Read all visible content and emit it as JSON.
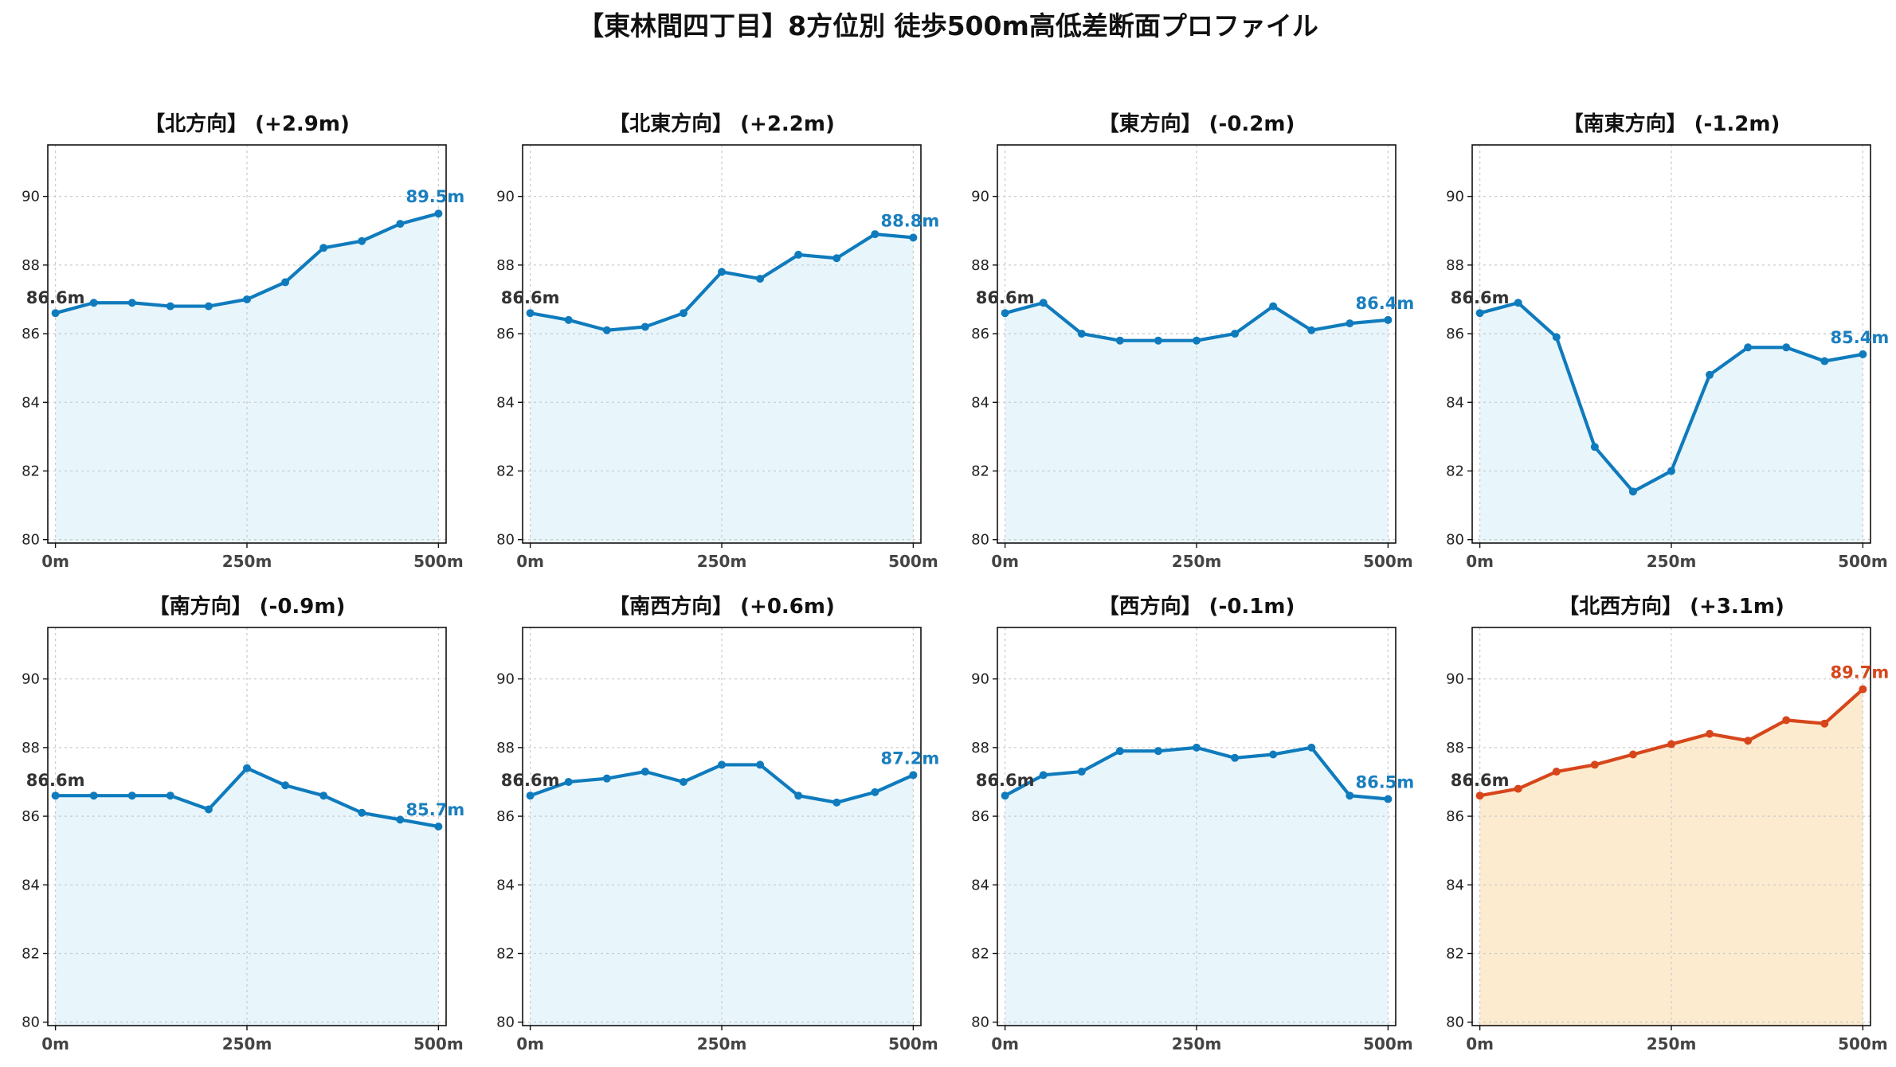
{
  "figure": {
    "title": "【東林間四丁目】8方位別 徒歩500m高低差断面プロファイル"
  },
  "colors": {
    "normal_line": "#0f7bbd",
    "normal_fill": "#e8f6fc",
    "normal_label": "#1a7fbf",
    "highlight_line": "#d7461b",
    "highlight_fill": "#fdebcf",
    "highlight_label": "#d7461b",
    "start_label": "#333333"
  },
  "chart_data": [
    {
      "type": "area",
      "title": "【北方向】 (+2.9m)",
      "highlight": false,
      "x": [
        0,
        50,
        100,
        150,
        200,
        250,
        300,
        350,
        400,
        450,
        500
      ],
      "y": [
        86.6,
        86.9,
        86.9,
        86.8,
        86.8,
        87.0,
        87.5,
        88.5,
        88.7,
        89.2,
        89.5
      ],
      "start_label": "86.6m",
      "end_label": "89.5m",
      "xticks": [
        "0m",
        "250m",
        "500m"
      ],
      "yticks": [
        "80",
        "82",
        "84",
        "86",
        "88",
        "90"
      ],
      "xlim": [
        -10,
        510
      ],
      "ylim": [
        79.9,
        91.5
      ],
      "grid": true
    },
    {
      "type": "area",
      "title": "【北東方向】 (+2.2m)",
      "highlight": false,
      "x": [
        0,
        50,
        100,
        150,
        200,
        250,
        300,
        350,
        400,
        450,
        500
      ],
      "y": [
        86.6,
        86.4,
        86.1,
        86.2,
        86.6,
        87.8,
        87.6,
        88.3,
        88.2,
        88.9,
        88.8
      ],
      "start_label": "86.6m",
      "end_label": "88.8m",
      "xticks": [
        "0m",
        "250m",
        "500m"
      ],
      "yticks": [
        "80",
        "82",
        "84",
        "86",
        "88",
        "90"
      ],
      "xlim": [
        -10,
        510
      ],
      "ylim": [
        79.9,
        91.5
      ],
      "grid": true
    },
    {
      "type": "area",
      "title": "【東方向】 (-0.2m)",
      "highlight": false,
      "x": [
        0,
        50,
        100,
        150,
        200,
        250,
        300,
        350,
        400,
        450,
        500
      ],
      "y": [
        86.6,
        86.9,
        86.0,
        85.8,
        85.8,
        85.8,
        86.0,
        86.8,
        86.1,
        86.3,
        86.4
      ],
      "start_label": "86.6m",
      "end_label": "86.4m",
      "xticks": [
        "0m",
        "250m",
        "500m"
      ],
      "yticks": [
        "80",
        "82",
        "84",
        "86",
        "88",
        "90"
      ],
      "xlim": [
        -10,
        510
      ],
      "ylim": [
        79.9,
        91.5
      ],
      "grid": true
    },
    {
      "type": "area",
      "title": "【南東方向】 (-1.2m)",
      "highlight": false,
      "x": [
        0,
        50,
        100,
        150,
        200,
        250,
        300,
        350,
        400,
        450,
        500
      ],
      "y": [
        86.6,
        86.9,
        85.9,
        82.7,
        81.4,
        82.0,
        84.8,
        85.6,
        85.6,
        85.2,
        85.4
      ],
      "start_label": "86.6m",
      "end_label": "85.4m",
      "xticks": [
        "0m",
        "250m",
        "500m"
      ],
      "yticks": [
        "80",
        "82",
        "84",
        "86",
        "88",
        "90"
      ],
      "xlim": [
        -10,
        510
      ],
      "ylim": [
        79.9,
        91.5
      ],
      "grid": true
    },
    {
      "type": "area",
      "title": "【南方向】 (-0.9m)",
      "highlight": false,
      "x": [
        0,
        50,
        100,
        150,
        200,
        250,
        300,
        350,
        400,
        450,
        500
      ],
      "y": [
        86.6,
        86.6,
        86.6,
        86.6,
        86.2,
        87.4,
        86.9,
        86.6,
        86.1,
        85.9,
        85.7
      ],
      "start_label": "86.6m",
      "end_label": "85.7m",
      "xticks": [
        "0m",
        "250m",
        "500m"
      ],
      "yticks": [
        "80",
        "82",
        "84",
        "86",
        "88",
        "90"
      ],
      "xlim": [
        -10,
        510
      ],
      "ylim": [
        79.9,
        91.5
      ],
      "grid": true
    },
    {
      "type": "area",
      "title": "【南西方向】 (+0.6m)",
      "highlight": false,
      "x": [
        0,
        50,
        100,
        150,
        200,
        250,
        300,
        350,
        400,
        450,
        500
      ],
      "y": [
        86.6,
        87.0,
        87.1,
        87.3,
        87.0,
        87.5,
        87.5,
        86.6,
        86.4,
        86.7,
        87.2
      ],
      "start_label": "86.6m",
      "end_label": "87.2m",
      "xticks": [
        "0m",
        "250m",
        "500m"
      ],
      "yticks": [
        "80",
        "82",
        "84",
        "86",
        "88",
        "90"
      ],
      "xlim": [
        -10,
        510
      ],
      "ylim": [
        79.9,
        91.5
      ],
      "grid": true
    },
    {
      "type": "area",
      "title": "【西方向】 (-0.1m)",
      "highlight": false,
      "x": [
        0,
        50,
        100,
        150,
        200,
        250,
        300,
        350,
        400,
        450,
        500
      ],
      "y": [
        86.6,
        87.2,
        87.3,
        87.9,
        87.9,
        88.0,
        87.7,
        87.8,
        88.0,
        86.6,
        86.5
      ],
      "start_label": "86.6m",
      "end_label": "86.5m",
      "xticks": [
        "0m",
        "250m",
        "500m"
      ],
      "yticks": [
        "80",
        "82",
        "84",
        "86",
        "88",
        "90"
      ],
      "xlim": [
        -10,
        510
      ],
      "ylim": [
        79.9,
        91.5
      ],
      "grid": true
    },
    {
      "type": "area",
      "title": "【北西方向】 (+3.1m)",
      "highlight": true,
      "x": [
        0,
        50,
        100,
        150,
        200,
        250,
        300,
        350,
        400,
        450,
        500
      ],
      "y": [
        86.6,
        86.8,
        87.3,
        87.5,
        87.8,
        88.1,
        88.4,
        88.2,
        88.8,
        88.7,
        89.7
      ],
      "start_label": "86.6m",
      "end_label": "89.7m",
      "xticks": [
        "0m",
        "250m",
        "500m"
      ],
      "yticks": [
        "80",
        "82",
        "84",
        "86",
        "88",
        "90"
      ],
      "xlim": [
        -10,
        510
      ],
      "ylim": [
        79.9,
        91.5
      ],
      "grid": true
    }
  ]
}
